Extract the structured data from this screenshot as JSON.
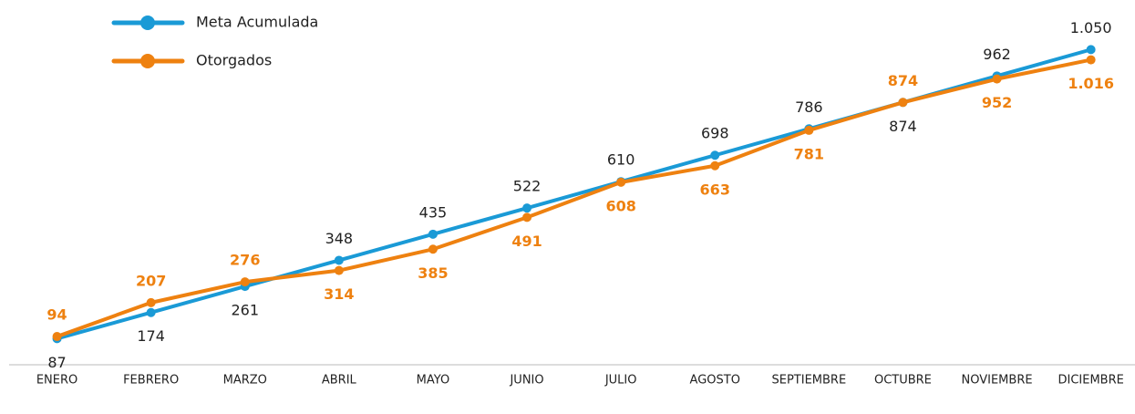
{
  "chart_data": {
    "type": "line",
    "categories": [
      "ENERO",
      "FEBRERO",
      "MARZO",
      "ABRIL",
      "MAYO",
      "JUNIO",
      "JULIO",
      "AGOSTO",
      "SEPTIEMBRE",
      "OCTUBRE",
      "NOVIEMBRE",
      "DICIEMBRE"
    ],
    "series": [
      {
        "name": "Meta Acumulada",
        "color": "#1a9ad6",
        "values": [
          87,
          174,
          261,
          348,
          435,
          522,
          610,
          698,
          786,
          874,
          962,
          1050
        ],
        "value_labels": [
          "87",
          "174",
          "261",
          "348",
          "435",
          "522",
          "610",
          "698",
          "786",
          "874",
          "962",
          "1.050"
        ]
      },
      {
        "name": "Otorgados",
        "color": "#ee8110",
        "values": [
          94,
          207,
          276,
          314,
          385,
          491,
          608,
          663,
          781,
          874,
          952,
          1016
        ],
        "value_labels": [
          "94",
          "207",
          "276",
          "314",
          "385",
          "491",
          "608",
          "663",
          "781",
          "874",
          "952",
          "1.016"
        ]
      }
    ],
    "ylim": [
      0,
      1200
    ],
    "legend": "top-left"
  }
}
